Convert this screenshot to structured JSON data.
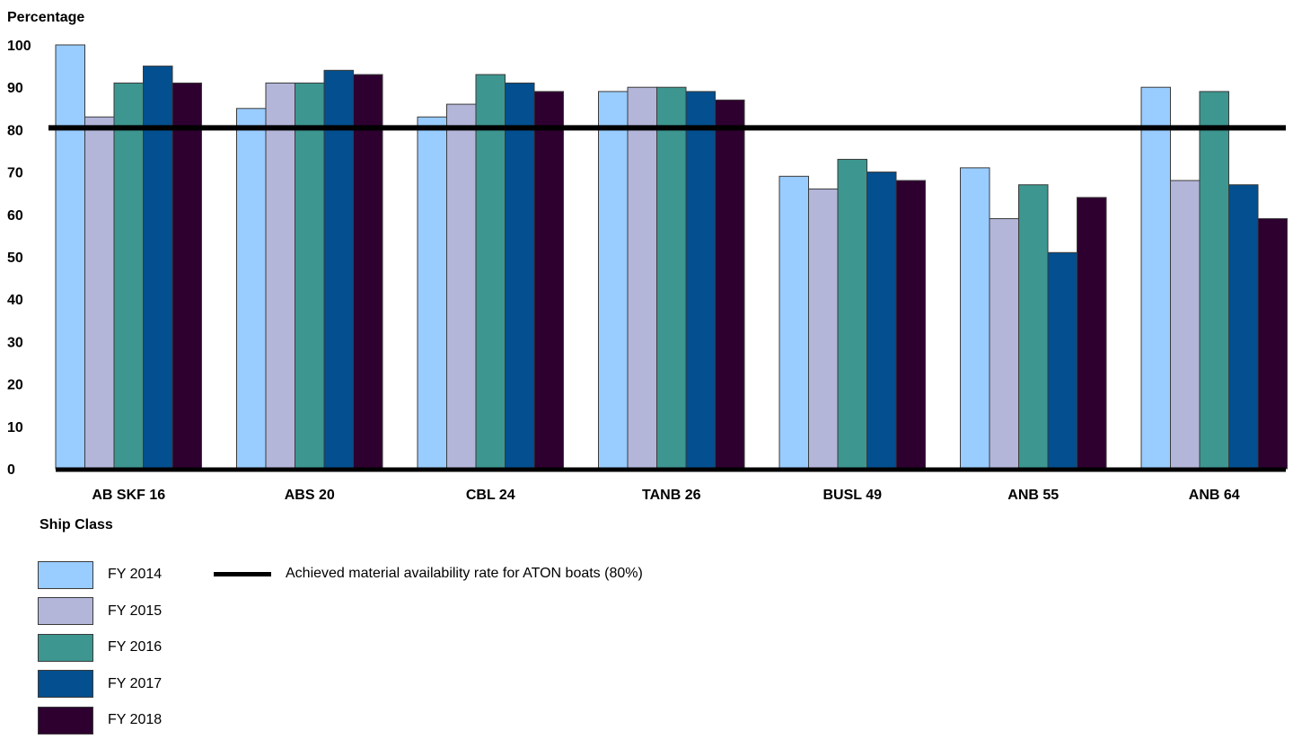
{
  "chart_data": {
    "type": "bar",
    "ylabel": "Percentage",
    "xlabel": "Ship Class",
    "ylim": [
      0,
      100
    ],
    "yticks": [
      0,
      10,
      20,
      30,
      40,
      50,
      60,
      70,
      80,
      90,
      100
    ],
    "grid": false,
    "categories": [
      "AB SKF 16",
      "ABS 20",
      "CBL 24",
      "TANB 26",
      "BUSL 49",
      "ANB 55",
      "ANB 64"
    ],
    "series": [
      {
        "name": "FY 2014",
        "color": "#99ccff",
        "values": [
          100,
          85,
          83,
          89,
          69,
          71,
          90
        ]
      },
      {
        "name": "FY 2015",
        "color": "#b3b6d9",
        "values": [
          83,
          91,
          86,
          90,
          66,
          59,
          68
        ]
      },
      {
        "name": "FY 2016",
        "color": "#3d9690",
        "values": [
          91,
          91,
          93,
          90,
          73,
          67,
          89
        ]
      },
      {
        "name": "FY 2017",
        "color": "#034f8f",
        "values": [
          95,
          94,
          91,
          89,
          70,
          51,
          67
        ]
      },
      {
        "name": "FY 2018",
        "color": "#2e0030",
        "values": [
          91,
          93,
          89,
          87,
          68,
          64,
          59
        ]
      }
    ],
    "reference_line": {
      "value": 80,
      "label": "Achieved material availability rate for ATON boats (80%)",
      "color": "#000000"
    },
    "legend_position": "bottom-left"
  }
}
